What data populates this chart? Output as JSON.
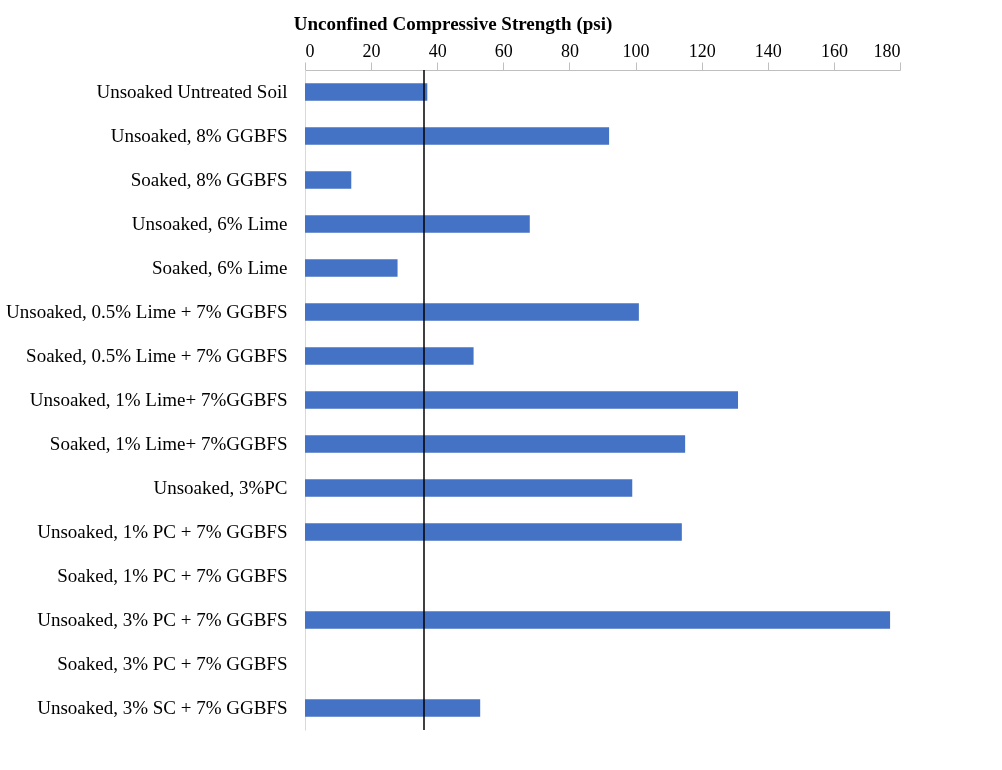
{
  "chart_data": {
    "type": "bar",
    "orientation": "horizontal",
    "title": "Unconfined Compressive Strength (psi)",
    "categories": [
      "Unsoaked Untreated Soil",
      "Unsoaked, 8% GGBFS",
      "Soaked, 8% GGBFS",
      "Unsoaked, 6% Lime",
      "Soaked, 6% Lime",
      "Unsoaked, 0.5% Lime + 7% GGBFS",
      "Soaked, 0.5% Lime + 7% GGBFS",
      "Unsoaked, 1% Lime+ 7%GGBFS",
      "Soaked, 1% Lime+ 7%GGBFS",
      "Unsoaked, 3%PC",
      "Unsoaked, 1% PC + 7% GGBFS",
      "Soaked, 1% PC + 7% GGBFS",
      "Unsoaked, 3% PC + 7% GGBFS",
      "Soaked, 3% PC + 7% GGBFS",
      "Unsoaked, 3% SC + 7% GGBFS"
    ],
    "values": [
      37,
      92,
      14,
      68,
      28,
      101,
      51,
      131,
      115,
      99,
      114,
      null,
      177,
      null,
      53
    ],
    "color": "#4472c4",
    "xlim": [
      0,
      180
    ],
    "xticks": [
      0,
      20,
      40,
      60,
      80,
      100,
      120,
      140,
      160,
      180
    ],
    "ref_lines": [
      {
        "axis": "x",
        "value": 36,
        "color": "#000000"
      }
    ],
    "grid": false
  }
}
